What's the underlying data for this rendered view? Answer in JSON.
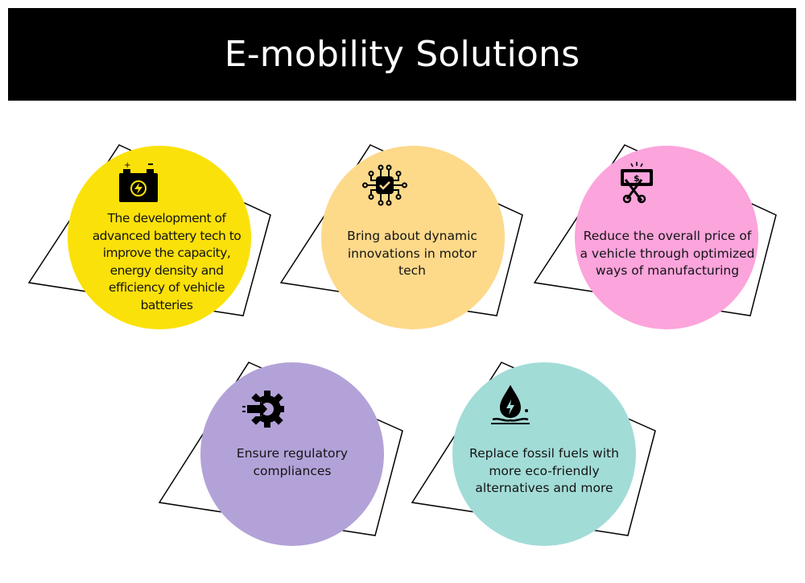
{
  "title": "E-mobility Solutions",
  "items": [
    {
      "text": "The development of advanced battery tech to improve the capacity, energy density and efficiency of vehicle batteries",
      "color": "#fbe10a",
      "icon": "battery-icon"
    },
    {
      "text": "Bring about dynamic innovations in motor tech",
      "color": "#fdd98a",
      "icon": "chip-icon"
    },
    {
      "text": "Reduce the overall price of a vehicle through optimized ways of manufacturing",
      "color": "#fca4dc",
      "icon": "price-cut-icon"
    },
    {
      "text": "Ensure regulatory compliances",
      "color": "#b3a2d8",
      "icon": "gear-arrow-icon"
    },
    {
      "text": "Replace fossil fuels with more eco-friendly alternatives and more",
      "color": "#a2dcd7",
      "icon": "oil-drop-icon"
    }
  ]
}
